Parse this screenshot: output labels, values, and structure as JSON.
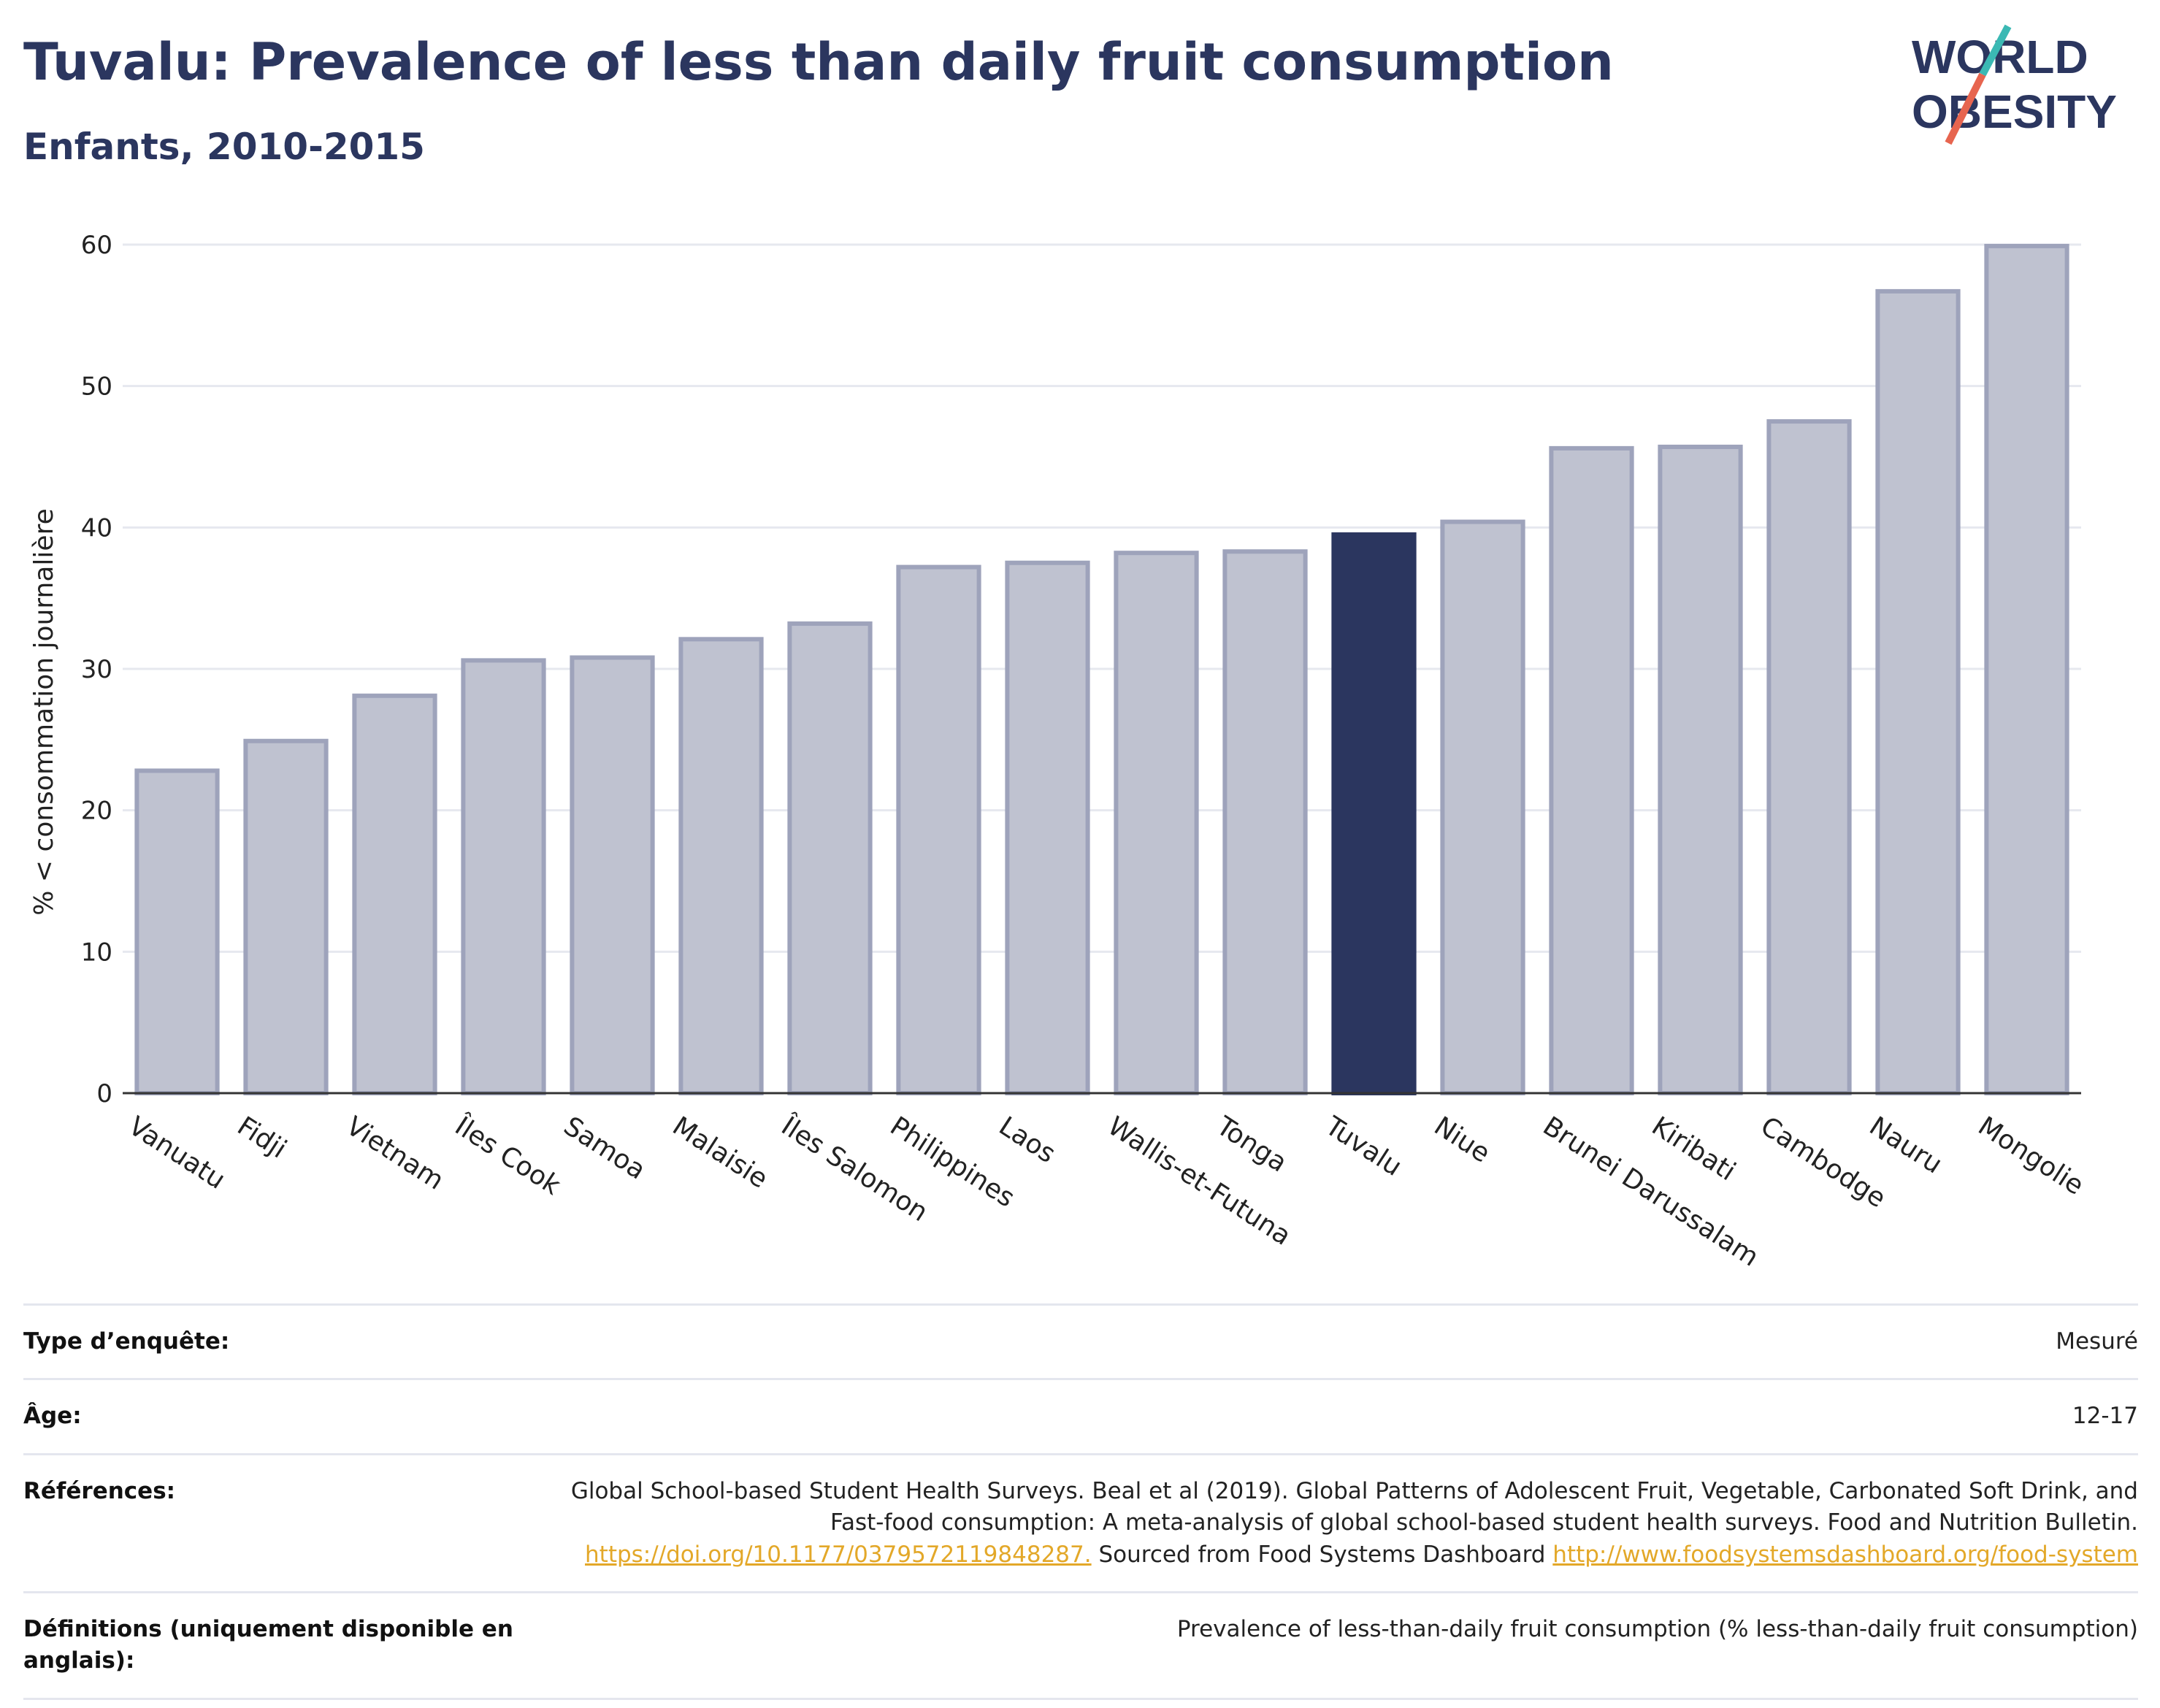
{
  "title": "Tuvalu: Prevalence of less than daily fruit consumption",
  "subtitle": "Enfants, 2010-2015",
  "logo": {
    "line1": "WORLD",
    "line2": "OBESITY",
    "accent_teal": "#3bb9b4",
    "accent_red": "#e7654f"
  },
  "colors": {
    "bar": "#bfc2d0",
    "bar_border": "#9ea3bb",
    "highlight": "#2b365f",
    "grid": "#e6e8ef"
  },
  "chart_data": {
    "type": "bar",
    "title": "Tuvalu: Prevalence of less than daily fruit consumption",
    "subtitle": "Enfants, 2010-2015",
    "xlabel": "",
    "ylabel": "% < consommation journalière",
    "ylim": [
      0,
      60
    ],
    "yticks": [
      0,
      10,
      20,
      30,
      40,
      50,
      60
    ],
    "grid": true,
    "highlight": "Tuvalu",
    "categories": [
      "Vanuatu",
      "Fidji",
      "Vietnam",
      "Îles Cook",
      "Samoa",
      "Malaisie",
      "Îles Salomon",
      "Philippines",
      "Laos",
      "Wallis-et-Futuna",
      "Tonga",
      "Tuvalu",
      "Niue",
      "Brunei Darussalam",
      "Kiribati",
      "Cambodge",
      "Nauru",
      "Mongolie"
    ],
    "values": [
      22.8,
      24.9,
      28.1,
      30.6,
      30.8,
      32.1,
      33.2,
      37.2,
      37.5,
      38.2,
      38.3,
      39.5,
      40.4,
      45.6,
      45.7,
      47.5,
      56.7,
      59.9
    ]
  },
  "info": {
    "survey_type_label": "Type d’enquête:",
    "survey_type_value": "Mesuré",
    "age_label": "Âge:",
    "age_value": "12-17",
    "references_label": "Références:",
    "references_text1": "Global School-based Student Health Surveys. Beal et al (2019). Global Patterns of Adolescent Fruit, Vegetable, Carbonated Soft Drink, and Fast-food consumption: A meta-analysis of global school-based student health surveys. Food and Nutrition Bulletin. ",
    "references_link1": "https://doi.org/10.1177/0379572119848287.",
    "references_text2": " Sourced from Food Systems Dashboard ",
    "references_link2": "http://www.foodsystemsdashboard.org/food-system",
    "definitions_label": "Définitions (uniquement disponible en anglais):",
    "definitions_value": "Prevalence of less-than-daily fruit consumption (% less-than-daily fruit consumption)"
  }
}
